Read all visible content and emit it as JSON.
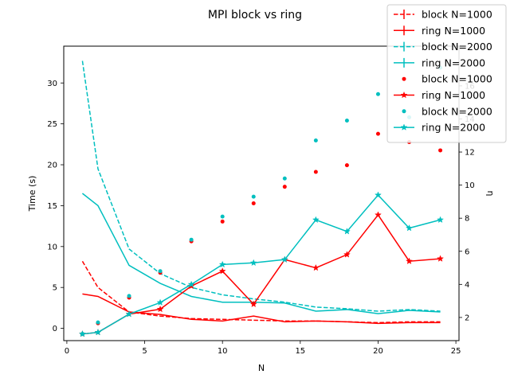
{
  "chart_data": {
    "type": "line",
    "title": "MPI block vs ring",
    "xlabel": "N",
    "ylabel_left": "Time (s)",
    "ylabel_right": "η",
    "x": [
      1,
      2,
      4,
      6,
      8,
      10,
      12,
      14,
      16,
      18,
      20,
      22,
      24
    ],
    "xlim": [
      -0.2,
      25.2
    ],
    "ylim_left": [
      -1.5,
      34.5
    ],
    "ylim_right": [
      0.6,
      18.4
    ],
    "xticks": [
      "0",
      "5",
      "10",
      "15",
      "20",
      "25"
    ],
    "yticks_left": [
      "0",
      "5",
      "10",
      "15",
      "20",
      "25",
      "30"
    ],
    "yticks_right": [
      "2",
      "4",
      "6",
      "8",
      "10",
      "12",
      "14",
      "16"
    ],
    "grid": false,
    "legend_position": "top-right",
    "series": [
      {
        "name": "block N=1000",
        "axis": "left",
        "style": "dashed-errorbar",
        "color": "#ff0000",
        "values": [
          8.2,
          5.0,
          2.0,
          1.5,
          1.2,
          1.1,
          1.0,
          0.9,
          0.9,
          0.8,
          0.7,
          0.8,
          0.8
        ]
      },
      {
        "name": "ring N=1000",
        "axis": "left",
        "style": "solid-errorbar",
        "color": "#ff0000",
        "values": [
          4.2,
          3.9,
          2.0,
          1.7,
          1.1,
          0.9,
          1.5,
          0.8,
          0.9,
          0.8,
          0.6,
          0.7,
          0.7
        ]
      },
      {
        "name": "block N=2000",
        "axis": "left",
        "style": "dashed-errorbar",
        "color": "#00bfbf",
        "values": [
          32.7,
          19.5,
          9.7,
          6.7,
          5.0,
          4.1,
          3.6,
          3.2,
          2.6,
          2.4,
          2.1,
          2.3,
          2.1
        ]
      },
      {
        "name": "ring N=2000",
        "axis": "left",
        "style": "solid-errorbar",
        "color": "#00bfbf",
        "values": [
          16.5,
          15.0,
          7.7,
          5.5,
          3.9,
          3.2,
          3.2,
          3.1,
          2.1,
          2.3,
          1.8,
          2.2,
          2.0
        ]
      },
      {
        "name": "block N=1000",
        "axis": "right",
        "style": "dots",
        "color": "#ff0000",
        "values": [
          1.0,
          1.65,
          3.2,
          4.7,
          6.6,
          7.8,
          8.9,
          9.9,
          10.8,
          11.2,
          13.1,
          12.6,
          12.1
        ]
      },
      {
        "name": "ring N=1000",
        "axis": "right",
        "style": "solid-star",
        "color": "#ff0000",
        "values": [
          1.0,
          1.1,
          2.2,
          2.5,
          3.9,
          4.8,
          2.8,
          5.5,
          5.0,
          5.8,
          8.2,
          5.4,
          5.55
        ]
      },
      {
        "name": "block N=2000",
        "axis": "right",
        "style": "dots",
        "color": "#00bfbf",
        "values": [
          1.0,
          1.7,
          3.3,
          4.8,
          6.7,
          8.1,
          9.3,
          10.4,
          12.7,
          13.9,
          15.5,
          14.1,
          17.1
        ]
      },
      {
        "name": "ring N=2000",
        "axis": "right",
        "style": "solid-star",
        "color": "#00bfbf",
        "values": [
          1.0,
          1.1,
          2.2,
          2.9,
          4.0,
          5.2,
          5.3,
          5.5,
          7.9,
          7.2,
          9.4,
          7.4,
          7.9
        ]
      }
    ]
  }
}
